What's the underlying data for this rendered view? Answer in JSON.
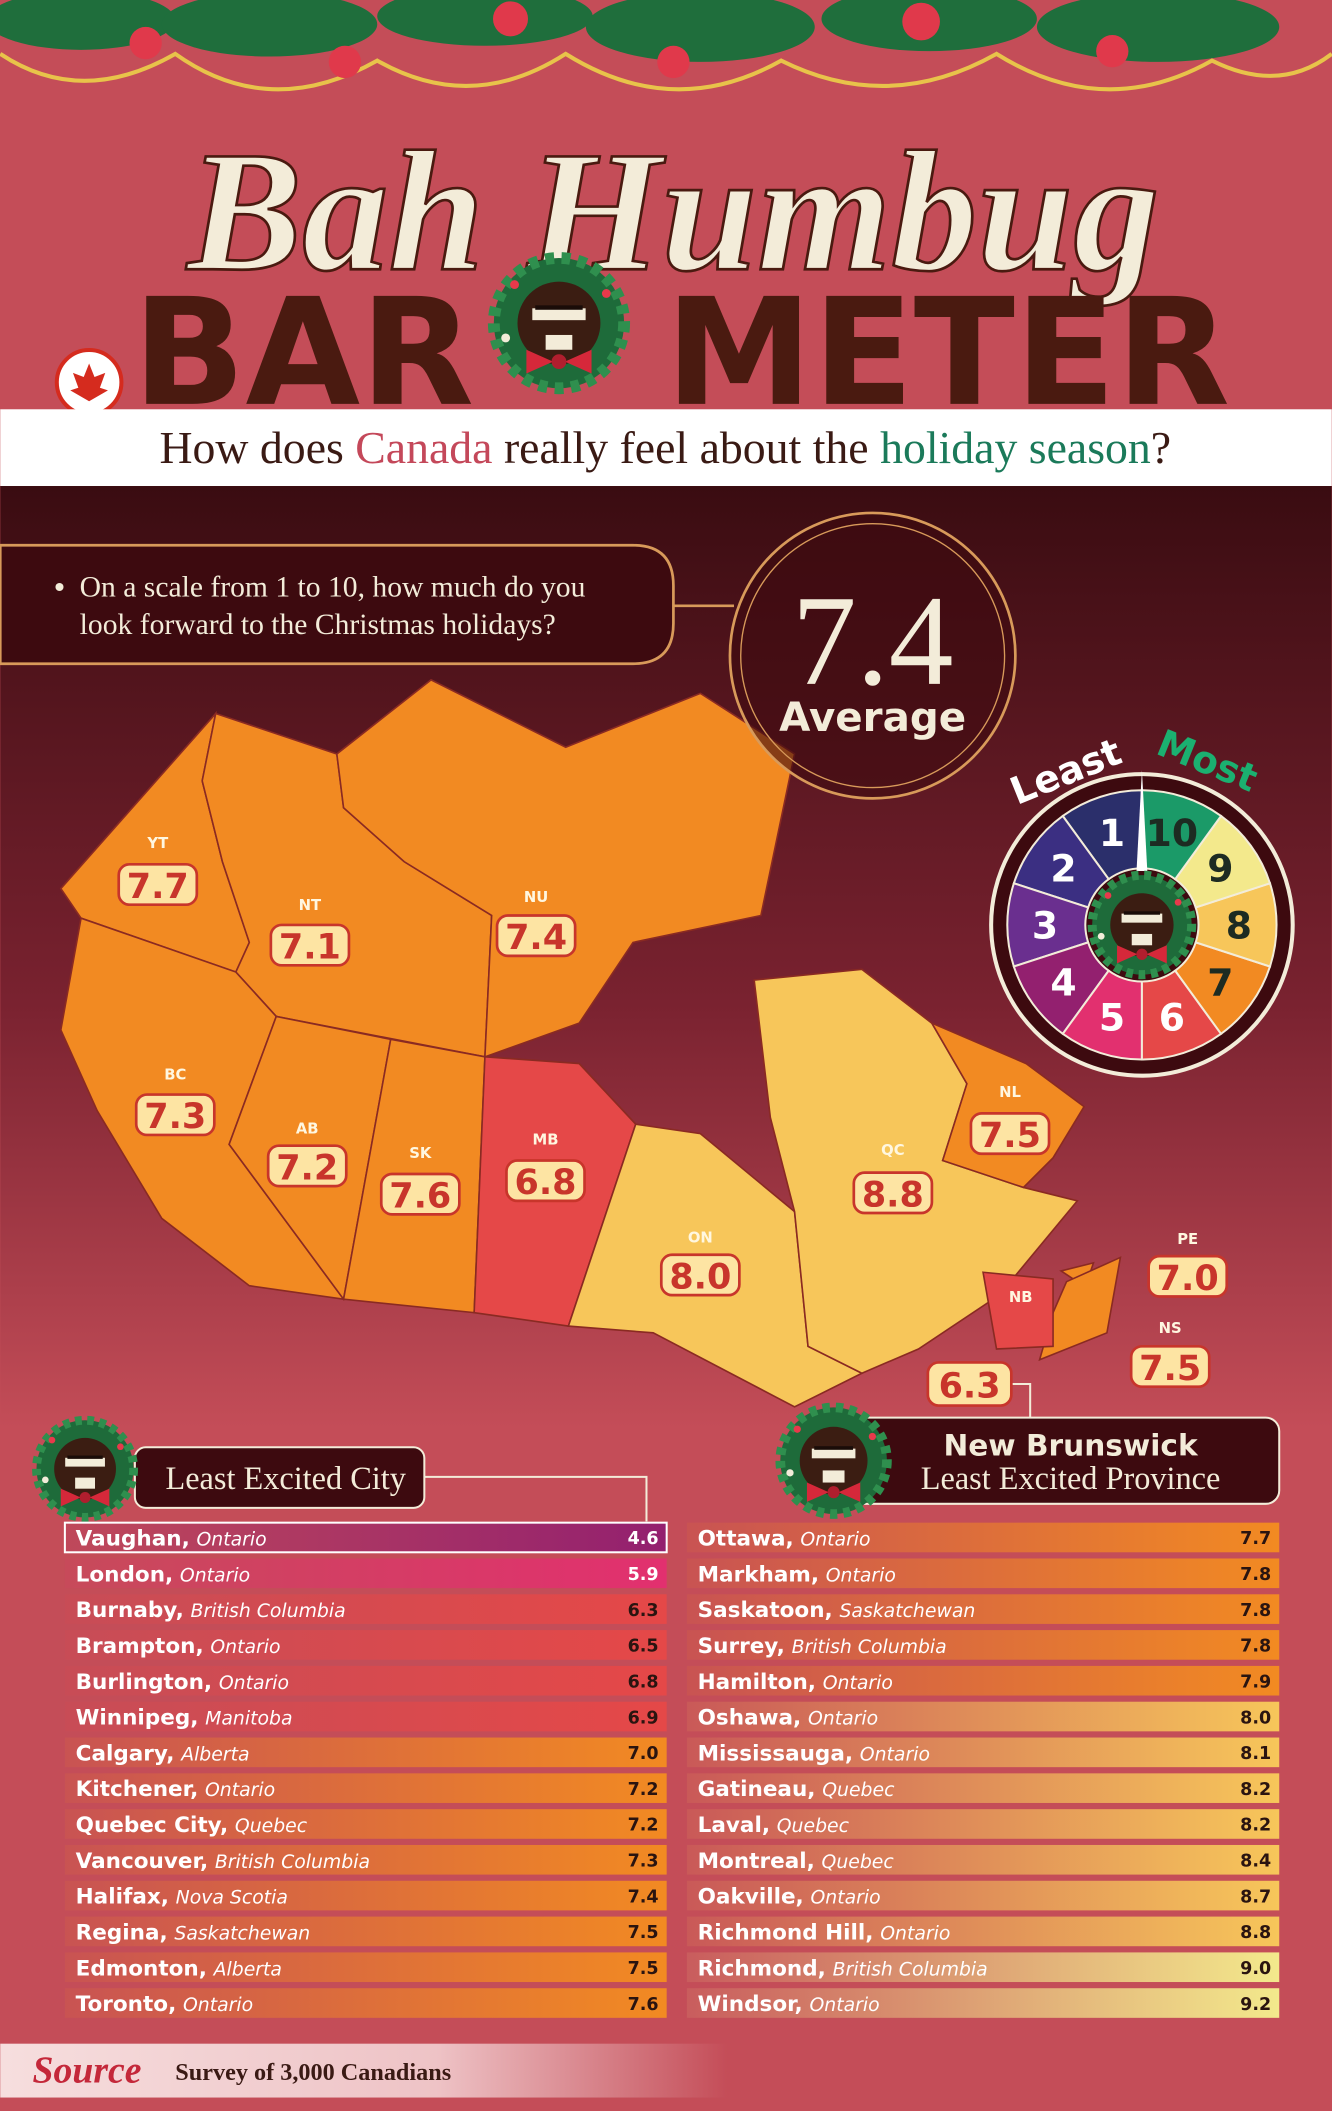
{
  "header": {
    "title": "Bah Humbug",
    "title_left": "BAR",
    "title_right": "METER",
    "subtitle": [
      "How does ",
      "Canada",
      " really feel about the ",
      "holiday season",
      "?"
    ]
  },
  "question": [
    "On a scale from 1 to 10, how much do you",
    "look forward to the Christmas holidays?"
  ],
  "average": {
    "value": "7.4",
    "label": "Average"
  },
  "scale": {
    "least": "Least",
    "most": "Most",
    "steps": [
      "1",
      "2",
      "3",
      "4",
      "5",
      "6",
      "7",
      "8",
      "9",
      "10"
    ],
    "colors": [
      "#2b2f6b",
      "#3b2f82",
      "#6a2f8f",
      "#93206f",
      "#e2306f",
      "#e54848",
      "#f28a22",
      "#f7c65a",
      "#f3e98c",
      "#1b9a68"
    ]
  },
  "provinces": [
    {
      "code": "YT",
      "score": "7.7"
    },
    {
      "code": "NT",
      "score": "7.1"
    },
    {
      "code": "NU",
      "score": "7.4"
    },
    {
      "code": "BC",
      "score": "7.3"
    },
    {
      "code": "AB",
      "score": "7.2"
    },
    {
      "code": "SK",
      "score": "7.6"
    },
    {
      "code": "MB",
      "score": "6.8"
    },
    {
      "code": "ON",
      "score": "8.0"
    },
    {
      "code": "QC",
      "score": "8.8"
    },
    {
      "code": "NL",
      "score": "7.5"
    },
    {
      "code": "PE",
      "score": "7.0"
    },
    {
      "code": "NS",
      "score": "7.5"
    },
    {
      "code": "NB",
      "score": "6.3"
    }
  ],
  "callouts": {
    "province_name": "New Brunswick",
    "province_label": "Least Excited Province",
    "city_label": "Least Excited City"
  },
  "cities": {
    "left": [
      {
        "city": "Vaughan,",
        "province": "Ontario",
        "score": "4.6"
      },
      {
        "city": "London,",
        "province": "Ontario",
        "score": "5.9"
      },
      {
        "city": "Burnaby,",
        "province": "British Columbia",
        "score": "6.3"
      },
      {
        "city": "Brampton,",
        "province": "Ontario",
        "score": "6.5"
      },
      {
        "city": "Burlington,",
        "province": "Ontario",
        "score": "6.8"
      },
      {
        "city": "Winnipeg,",
        "province": "Manitoba",
        "score": "6.9"
      },
      {
        "city": "Calgary,",
        "province": "Alberta",
        "score": "7.0"
      },
      {
        "city": "Kitchener,",
        "province": "Ontario",
        "score": "7.2"
      },
      {
        "city": "Quebec City,",
        "province": "Quebec",
        "score": "7.2"
      },
      {
        "city": "Vancouver,",
        "province": "British Columbia",
        "score": "7.3"
      },
      {
        "city": "Halifax,",
        "province": "Nova Scotia",
        "score": "7.4"
      },
      {
        "city": "Regina,",
        "province": "Saskatchewan",
        "score": "7.5"
      },
      {
        "city": "Edmonton,",
        "province": "Alberta",
        "score": "7.5"
      },
      {
        "city": "Toronto,",
        "province": "Ontario",
        "score": "7.6"
      }
    ],
    "right": [
      {
        "city": "Ottawa,",
        "province": "Ontario",
        "score": "7.7"
      },
      {
        "city": "Markham,",
        "province": "Ontario",
        "score": "7.8"
      },
      {
        "city": "Saskatoon,",
        "province": "Saskatchewan",
        "score": "7.8"
      },
      {
        "city": "Surrey,",
        "province": "British Columbia",
        "score": "7.8"
      },
      {
        "city": "Hamilton,",
        "province": "Ontario",
        "score": "7.9"
      },
      {
        "city": "Oshawa,",
        "province": "Ontario",
        "score": "8.0"
      },
      {
        "city": "Mississauga,",
        "province": "Ontario",
        "score": "8.1"
      },
      {
        "city": "Gatineau,",
        "province": "Quebec",
        "score": "8.2"
      },
      {
        "city": "Laval,",
        "province": "Quebec",
        "score": "8.2"
      },
      {
        "city": "Montreal,",
        "province": "Quebec",
        "score": "8.4"
      },
      {
        "city": "Oakville,",
        "province": "Ontario",
        "score": "8.7"
      },
      {
        "city": "Richmond Hill,",
        "province": "Ontario",
        "score": "8.8"
      },
      {
        "city": "Richmond,",
        "province": "British Columbia",
        "score": "9.0"
      },
      {
        "city": "Windsor,",
        "province": "Ontario",
        "score": "9.2"
      }
    ]
  },
  "source": {
    "label": "Source",
    "text": "Survey of 3,000 Canadians"
  }
}
